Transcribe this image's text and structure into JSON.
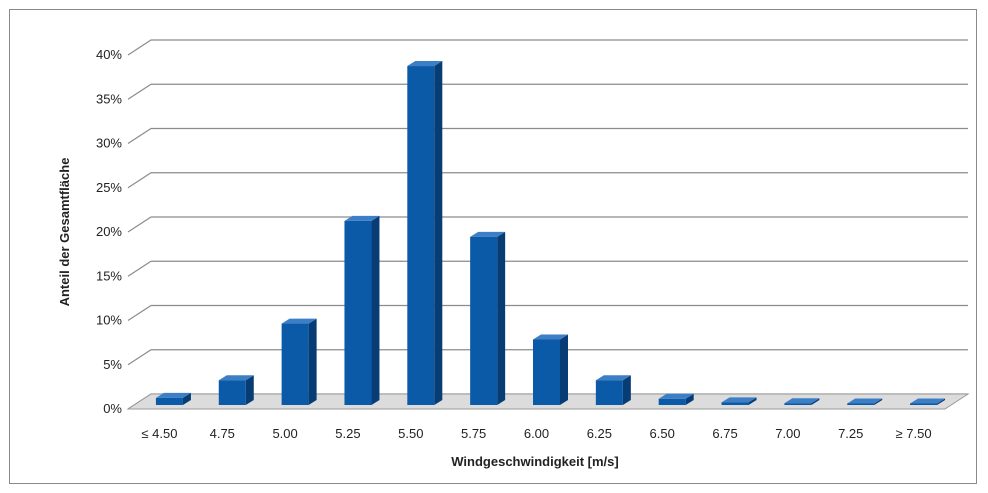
{
  "chart_data": {
    "type": "bar",
    "title": "",
    "xlabel": "Windgeschwindigkeit [m/s]",
    "ylabel": "Anteil der Gesamtfläche",
    "categories": [
      "≤ 4.50",
      "4.75",
      "5.00",
      "5.25",
      "5.50",
      "5.75",
      "6.00",
      "6.25",
      "6.50",
      "6.75",
      "7.00",
      "7.25",
      "≥ 7.50"
    ],
    "values": [
      0.8,
      2.8,
      9.2,
      20.8,
      38.3,
      19.0,
      7.4,
      2.8,
      0.7,
      0.3,
      0.2,
      0.1,
      0.1
    ],
    "yticks": [
      "0%",
      "5%",
      "10%",
      "15%",
      "20%",
      "25%",
      "30%",
      "35%",
      "40%"
    ],
    "ylim": [
      0,
      40
    ],
    "grid": true,
    "colors": {
      "bar_front": "#0b5aa8",
      "bar_side": "#073c74",
      "bar_top": "#3d7fc6",
      "grid": "#8c8c8c",
      "floor": "#dcdcdc"
    }
  }
}
